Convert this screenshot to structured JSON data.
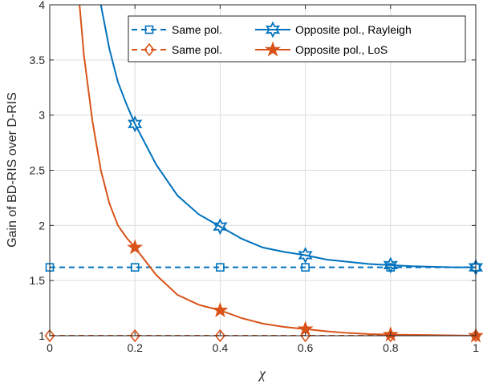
{
  "chart_data": {
    "type": "line",
    "xlabel": "χ",
    "ylabel": "Gain of BD-RIS over D-RIS",
    "xlim": [
      0,
      1
    ],
    "ylim": [
      1,
      4
    ],
    "xticks": [
      0,
      0.2,
      0.4,
      0.6,
      0.8,
      1
    ],
    "yticks": [
      1,
      1.5,
      2,
      2.5,
      3,
      3.5,
      4
    ],
    "xtick_labels": [
      "0",
      "0.2",
      "0.4",
      "0.6",
      "0.8",
      "1"
    ],
    "ytick_labels": [
      "1",
      "1.5",
      "2",
      "2.5",
      "3",
      "3.5",
      "4"
    ],
    "grid": true,
    "legend_position": "top",
    "series": [
      {
        "name": "Same pol.",
        "color": "#0072BD",
        "line_style": "dashed",
        "marker": "square",
        "x": [
          0,
          0.2,
          0.4,
          0.6,
          0.8,
          1
        ],
        "y": [
          1.62,
          1.62,
          1.62,
          1.62,
          1.62,
          1.62
        ]
      },
      {
        "name": "Same pol.",
        "color": "#D95319",
        "line_style": "dashed",
        "marker": "diamond",
        "x": [
          0,
          0.2,
          0.4,
          0.6,
          0.8,
          1
        ],
        "y": [
          1.0,
          1.0,
          1.0,
          1.0,
          1.0,
          1.0
        ]
      },
      {
        "name": "Opposite pol., Rayleigh",
        "color": "#0072BD",
        "line_style": "solid",
        "marker": "hexagram",
        "x": [
          0.12,
          0.14,
          0.16,
          0.18,
          0.2,
          0.25,
          0.3,
          0.35,
          0.4,
          0.45,
          0.5,
          0.55,
          0.6,
          0.65,
          0.7,
          0.75,
          0.8,
          0.85,
          0.9,
          0.95,
          1.0
        ],
        "y": [
          4.0,
          3.6,
          3.3,
          3.1,
          2.92,
          2.55,
          2.27,
          2.1,
          1.99,
          1.88,
          1.8,
          1.76,
          1.73,
          1.69,
          1.67,
          1.65,
          1.64,
          1.63,
          1.625,
          1.62,
          1.62
        ],
        "marker_x": [
          0.2,
          0.4,
          0.6,
          0.8,
          1
        ],
        "marker_y": [
          2.92,
          1.99,
          1.73,
          1.64,
          1.62
        ]
      },
      {
        "name": "Opposite pol., LoS",
        "color": "#D95319",
        "line_style": "solid",
        "marker": "pentagram",
        "x": [
          0.07,
          0.08,
          0.1,
          0.12,
          0.14,
          0.16,
          0.18,
          0.2,
          0.25,
          0.3,
          0.35,
          0.4,
          0.45,
          0.5,
          0.55,
          0.6,
          0.65,
          0.7,
          0.75,
          0.8,
          0.9,
          1.0
        ],
        "y": [
          4.0,
          3.55,
          2.95,
          2.5,
          2.2,
          2.0,
          1.89,
          1.8,
          1.55,
          1.37,
          1.28,
          1.23,
          1.16,
          1.11,
          1.08,
          1.06,
          1.04,
          1.025,
          1.015,
          1.01,
          1.005,
          1.0
        ],
        "marker_x": [
          0.2,
          0.4,
          0.6,
          0.8,
          1
        ],
        "marker_y": [
          1.8,
          1.23,
          1.06,
          1.01,
          1.0
        ]
      }
    ]
  }
}
